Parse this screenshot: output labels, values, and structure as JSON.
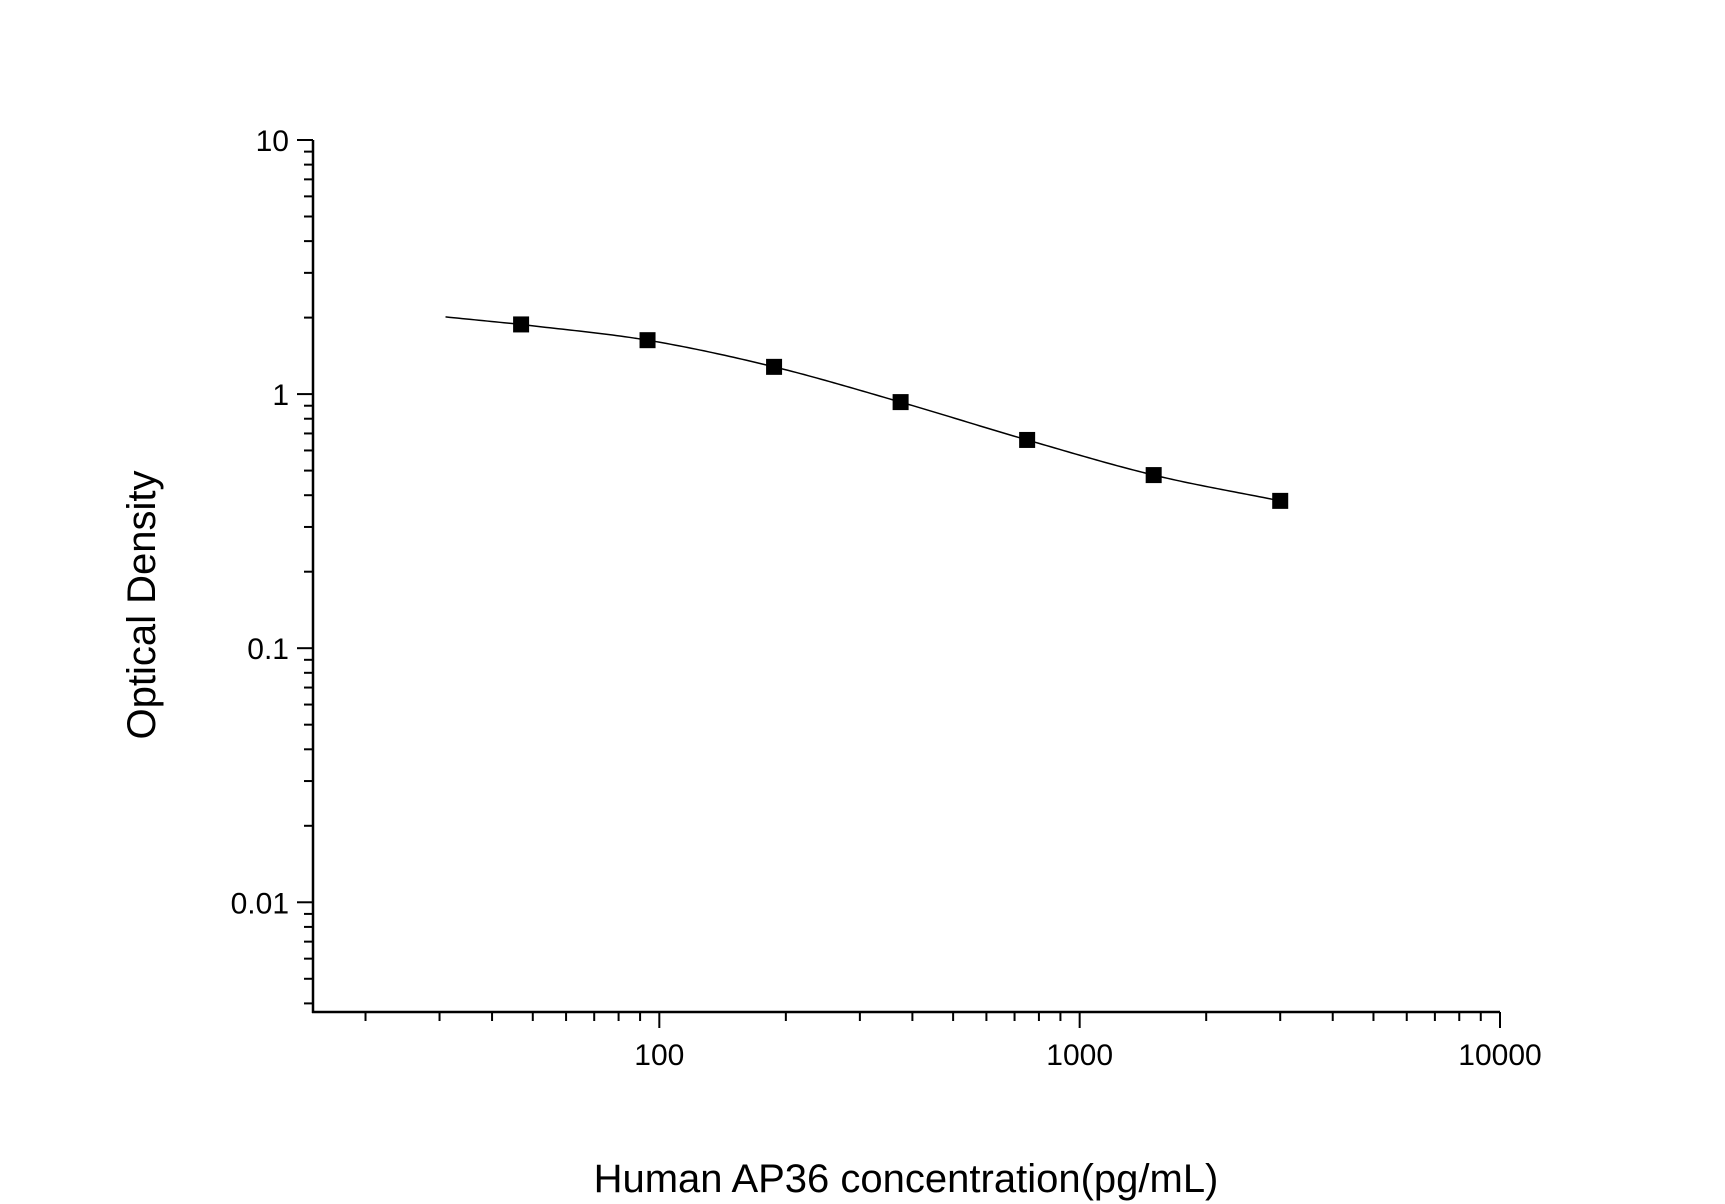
{
  "chart_data": {
    "type": "scatter",
    "xlabel": "Human AP36 concentration(pg/mL)",
    "ylabel": "Optical Density",
    "x_scale": "log",
    "y_scale": "log",
    "xlim": [
      15,
      10000
    ],
    "ylim": [
      0.0037,
      10
    ],
    "x_ticks": [
      100,
      1000,
      10000
    ],
    "x_tick_labels": [
      "100",
      "1000",
      "10000"
    ],
    "y_ticks": [
      0.01,
      0.1,
      1,
      10
    ],
    "y_tick_labels": [
      "0.01",
      "0.1",
      "1",
      "10"
    ],
    "grid": false,
    "series": [
      {
        "marker": "square",
        "color": "#000000",
        "x": [
          46.9,
          93.75,
          187.5,
          375,
          750,
          1500,
          3000
        ],
        "y": [
          1.88,
          1.63,
          1.28,
          0.93,
          0.66,
          0.48,
          0.38
        ]
      }
    ],
    "fit_curve": {
      "x_range": [
        31,
        3000
      ],
      "color": "#000000"
    }
  }
}
